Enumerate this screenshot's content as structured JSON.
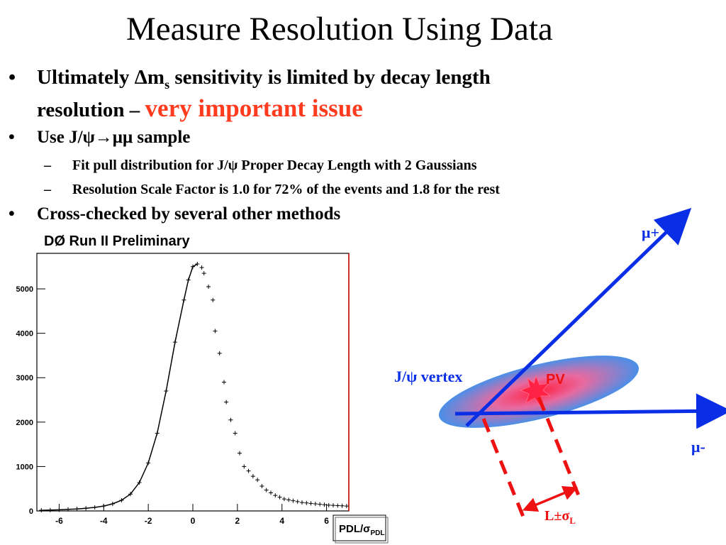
{
  "slide": {
    "title": "Measure Resolution Using Data",
    "bullets": [
      {
        "prefix": "Ultimately ",
        "symbol": "Δm",
        "subscript": "s",
        "rest": " sensitivity is limited by decay length",
        "line2": "resolution – ",
        "highlight": "very important issue"
      },
      {
        "text": "Use J/ψ→μμ sample"
      },
      {
        "text": "Cross-checked by several other methods"
      }
    ],
    "subbullets": [
      "Fit pull distribution for J/ψ Proper Decay Length with 2 Gaussians",
      "Resolution Scale Factor is 1.0 for 72% of the events and 1.8 for the rest"
    ],
    "plot_label": "DØ Run II Preliminary",
    "colors": {
      "highlight": "#ff3b1f",
      "arrow": "#0a2ee6",
      "dashes": "#ee1111",
      "ellipse": "#4a8fe8"
    }
  },
  "chart_data": {
    "type": "scatter",
    "xlabel": "PDL/σPDL",
    "xlim": [
      -7,
      7
    ],
    "ylim": [
      0,
      5800
    ],
    "x_ticks": [
      -6,
      -4,
      -2,
      0,
      2,
      4,
      6
    ],
    "y_ticks": [
      0,
      1000,
      2000,
      3000,
      4000,
      5000
    ],
    "data_points": [
      [
        -6.8,
        15
      ],
      [
        -6.4,
        20
      ],
      [
        -6.0,
        25
      ],
      [
        -5.6,
        35
      ],
      [
        -5.2,
        45
      ],
      [
        -4.8,
        60
      ],
      [
        -4.4,
        80
      ],
      [
        -4.0,
        110
      ],
      [
        -3.6,
        160
      ],
      [
        -3.2,
        240
      ],
      [
        -2.8,
        380
      ],
      [
        -2.4,
        640
      ],
      [
        -2.0,
        1080
      ],
      [
        -1.6,
        1750
      ],
      [
        -1.2,
        2700
      ],
      [
        -0.8,
        3800
      ],
      [
        -0.4,
        4750
      ],
      [
        -0.2,
        5200
      ],
      [
        0.0,
        5500
      ],
      [
        0.2,
        5560
      ],
      [
        0.4,
        5480
      ],
      [
        0.5,
        5350
      ],
      [
        0.7,
        5050
      ],
      [
        0.9,
        4750
      ],
      [
        1.0,
        4050
      ],
      [
        1.2,
        3550
      ],
      [
        1.4,
        2900
      ],
      [
        1.5,
        2450
      ],
      [
        1.7,
        2050
      ],
      [
        1.9,
        1750
      ],
      [
        2.1,
        1300
      ],
      [
        2.3,
        1000
      ],
      [
        2.5,
        900
      ],
      [
        2.7,
        780
      ],
      [
        2.9,
        700
      ],
      [
        3.1,
        560
      ],
      [
        3.3,
        470
      ],
      [
        3.5,
        410
      ],
      [
        3.7,
        350
      ],
      [
        3.9,
        310
      ],
      [
        4.1,
        270
      ],
      [
        4.3,
        250
      ],
      [
        4.5,
        230
      ],
      [
        4.7,
        210
      ],
      [
        4.9,
        190
      ],
      [
        5.1,
        180
      ],
      [
        5.3,
        170
      ],
      [
        5.5,
        160
      ],
      [
        5.7,
        150
      ],
      [
        5.9,
        140
      ],
      [
        6.1,
        130
      ],
      [
        6.3,
        125
      ],
      [
        6.5,
        120
      ],
      [
        6.7,
        115
      ],
      [
        6.9,
        110
      ]
    ],
    "fit_curve": "left-side Gaussian fit line"
  },
  "diagram": {
    "mu_plus": "μ+",
    "mu_minus": "μ-",
    "vertex_label": "J/ψ vertex",
    "pv_label": "PV",
    "length_label": "L±σL"
  }
}
